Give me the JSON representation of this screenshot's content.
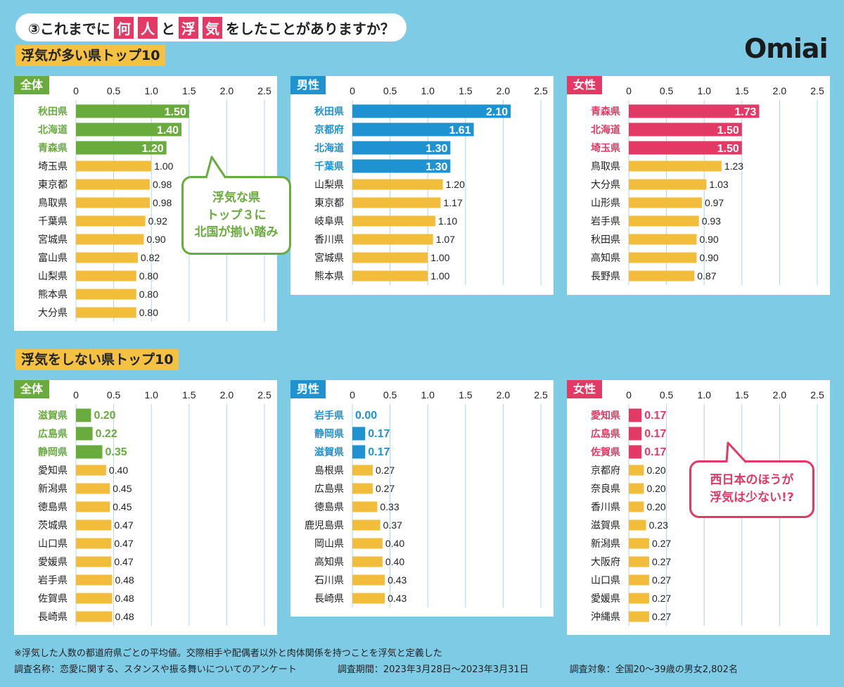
{
  "header": {
    "question_num": "③これまでに",
    "q_hl1": "何",
    "q_hl2": "人",
    "q_mid": "と",
    "q_hl3": "浮",
    "q_hl4": "気",
    "q_end": "をしたことがありますか？"
  },
  "brand": "Omiai",
  "sections": [
    {
      "title": "浮気が多い県トップ10"
    },
    {
      "title": "浮気をしない県トップ10"
    }
  ],
  "colors": {
    "overall": "#6aab3e",
    "male": "#1f93d2",
    "female": "#e23a64",
    "other": "#f2bd3a"
  },
  "bubbles": {
    "top": {
      "line1": "浮気な県",
      "line2": "トップ３に",
      "line3": "北国が揃い踏み"
    },
    "bottom": {
      "line1": "西日本のほうが",
      "line2": "浮気は少ない!?"
    }
  },
  "chart_data": [
    {
      "type": "bar",
      "group": "浮気が多い県トップ10",
      "title": "全体",
      "color": "overall",
      "xlim": [
        0,
        2.5
      ],
      "ticks": [
        "0",
        "0.5",
        "1.0",
        "1.5",
        "2.0",
        "2.5"
      ],
      "categories": [
        "秋田県",
        "北海道",
        "青森県",
        "埼玉県",
        "東京都",
        "鳥取県",
        "千葉県",
        "宮城県",
        "富山県",
        "山梨県",
        "熊本県",
        "大分県"
      ],
      "values": [
        1.5,
        1.4,
        1.2,
        1.0,
        0.98,
        0.98,
        0.92,
        0.9,
        0.82,
        0.8,
        0.8,
        0.8
      ],
      "labels": [
        "1.50",
        "1.40",
        "1.20",
        "1.00",
        "0.98",
        "0.98",
        "0.92",
        "0.90",
        "0.82",
        "0.80",
        "0.80",
        "0.80"
      ],
      "highlight": 3
    },
    {
      "type": "bar",
      "group": "浮気が多い県トップ10",
      "title": "男性",
      "color": "male",
      "xlim": [
        0,
        2.5
      ],
      "ticks": [
        "0",
        "0.5",
        "1.0",
        "1.5",
        "2.0",
        "2.5"
      ],
      "categories": [
        "秋田県",
        "京都府",
        "北海道",
        "千葉県",
        "山梨県",
        "東京都",
        "岐阜県",
        "香川県",
        "宮城県",
        "熊本県"
      ],
      "values": [
        2.1,
        1.61,
        1.3,
        1.3,
        1.2,
        1.17,
        1.1,
        1.07,
        1.0,
        1.0
      ],
      "labels": [
        "2.10",
        "1.61",
        "1.30",
        "1.30",
        "1.20",
        "1.17",
        "1.10",
        "1.07",
        "1.00",
        "1.00"
      ],
      "highlight": 4
    },
    {
      "type": "bar",
      "group": "浮気が多い県トップ10",
      "title": "女性",
      "color": "female",
      "xlim": [
        0,
        2.5
      ],
      "ticks": [
        "0",
        "0.5",
        "1.0",
        "1.5",
        "2.0",
        "2.5"
      ],
      "categories": [
        "青森県",
        "北海道",
        "埼玉県",
        "鳥取県",
        "大分県",
        "山形県",
        "岩手県",
        "秋田県",
        "高知県",
        "長野県"
      ],
      "values": [
        1.73,
        1.5,
        1.5,
        1.23,
        1.03,
        0.97,
        0.93,
        0.9,
        0.9,
        0.87
      ],
      "labels": [
        "1.73",
        "1.50",
        "1.50",
        "1.23",
        "1.03",
        "0.97",
        "0.93",
        "0.90",
        "0.90",
        "0.87"
      ],
      "highlight": 3
    },
    {
      "type": "bar",
      "group": "浮気をしない県トップ10",
      "title": "全体",
      "color": "overall",
      "xlim": [
        0,
        2.5
      ],
      "ticks": [
        "0",
        "0.5",
        "1.0",
        "1.5",
        "2.0",
        "2.5"
      ],
      "categories": [
        "滋賀県",
        "広島県",
        "静岡県",
        "愛知県",
        "新潟県",
        "徳島県",
        "茨城県",
        "山口県",
        "愛媛県",
        "岩手県",
        "佐賀県",
        "長崎県"
      ],
      "values": [
        0.2,
        0.22,
        0.35,
        0.4,
        0.45,
        0.45,
        0.47,
        0.47,
        0.47,
        0.48,
        0.48,
        0.48
      ],
      "labels": [
        "0.20",
        "0.22",
        "0.35",
        "0.40",
        "0.45",
        "0.45",
        "0.47",
        "0.47",
        "0.47",
        "0.48",
        "0.48",
        "0.48"
      ],
      "highlight": 3
    },
    {
      "type": "bar",
      "group": "浮気をしない県トップ10",
      "title": "男性",
      "color": "male",
      "xlim": [
        0,
        2.5
      ],
      "ticks": [
        "0",
        "0.5",
        "1.0",
        "1.5",
        "2.0",
        "2.5"
      ],
      "categories": [
        "岩手県",
        "静岡県",
        "滋賀県",
        "島根県",
        "広島県",
        "徳島県",
        "鹿児島県",
        "岡山県",
        "高知県",
        "石川県",
        "長崎県"
      ],
      "values": [
        0.0,
        0.17,
        0.17,
        0.27,
        0.27,
        0.33,
        0.37,
        0.4,
        0.4,
        0.43,
        0.43
      ],
      "labels": [
        "0.00",
        "0.17",
        "0.17",
        "0.27",
        "0.27",
        "0.33",
        "0.37",
        "0.40",
        "0.40",
        "0.43",
        "0.43"
      ],
      "highlight": 3
    },
    {
      "type": "bar",
      "group": "浮気をしない県トップ10",
      "title": "女性",
      "color": "female",
      "xlim": [
        0,
        2.5
      ],
      "ticks": [
        "0",
        "0.5",
        "1.0",
        "1.5",
        "2.0",
        "2.5"
      ],
      "categories": [
        "愛知県",
        "広島県",
        "佐賀県",
        "京都府",
        "奈良県",
        "香川県",
        "滋賀県",
        "新潟県",
        "大阪府",
        "山口県",
        "愛媛県",
        "沖縄県"
      ],
      "values": [
        0.17,
        0.17,
        0.17,
        0.2,
        0.2,
        0.2,
        0.23,
        0.27,
        0.27,
        0.27,
        0.27,
        0.27
      ],
      "labels": [
        "0.17",
        "0.17",
        "0.17",
        "0.20",
        "0.20",
        "0.20",
        "0.23",
        "0.27",
        "0.27",
        "0.27",
        "0.27",
        "0.27"
      ],
      "highlight": 3
    }
  ],
  "footnote": "※浮気した人数の都道府県ごとの平均値。交際相手や配偶者以外と肉体関係を持つことを浮気と定義した",
  "survey": {
    "name": "調査名称：恋愛に関する、スタンスや振る舞いについてのアンケート",
    "period": "調査期間：2023年3月28日～2023年3月31日",
    "target": "調査対象：全国20～39歳の男女2,802名"
  }
}
